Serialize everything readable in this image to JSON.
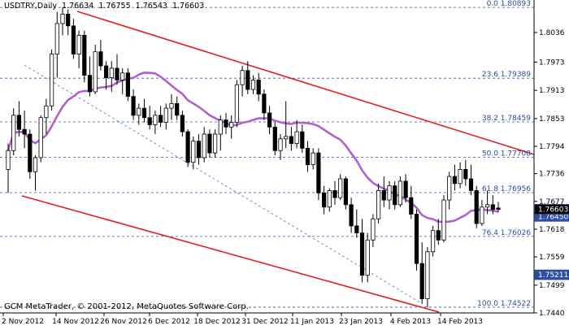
{
  "header": {
    "symbol": "USDTRY,Daily",
    "open": "1.76634",
    "high": "1.76755",
    "low": "1.76543",
    "close": "1.76603"
  },
  "copyright": "GCM MetaTrader, © 2001-2012, MetaQuotes Software Corp.",
  "colors": {
    "background": "#ffffff",
    "candle": "#000000",
    "channel": "#e02020",
    "moving_average": "#b060d0",
    "fib_line": "#3355aa",
    "diag_line": "#5577cc",
    "current_price_label": "#1f3f8f",
    "axis": "#000000"
  },
  "chart_data": {
    "type": "candlestick",
    "symbol": "USDTRY",
    "timeframe": "Daily",
    "ylim": [
      1.744,
      1.8105
    ],
    "xlabels": [
      "2 Nov 2012",
      "14 Nov 2012",
      "26 Nov 2012",
      "6 Dec 2012",
      "18 Dec 2012",
      "31 Dec 2012",
      "11 Jan 2013",
      "23 Jan 2013",
      "4 Feb 2013",
      "14 Feb 2013"
    ],
    "yticks": [
      "1.8036",
      "1.7973",
      "1.7913",
      "1.7853",
      "1.7794",
      "1.7736",
      "1.7677",
      "1.7618",
      "1.7559",
      "1.7499",
      "1.7440"
    ],
    "current_price": "1.76603",
    "price_marker_2": "1.76450",
    "price_marker_3": "1.75211",
    "fib_levels": [
      {
        "label": "0.0 1.80893",
        "value": 1.80893
      },
      {
        "label": "23.6 1.79389",
        "value": 1.79389
      },
      {
        "label": "38.2 1.78459",
        "value": 1.78459
      },
      {
        "label": "50.0 1.77708",
        "value": 1.77708
      },
      {
        "label": "61.8 1.76956",
        "value": 1.76956
      },
      {
        "label": "76.4 1.76026",
        "value": 1.76026
      },
      {
        "label": "100.0 1.74522",
        "value": 1.74522
      }
    ],
    "candles": [
      {
        "o": 1.7745,
        "h": 1.78,
        "l": 1.7695,
        "c": 1.7785
      },
      {
        "o": 1.7785,
        "h": 1.7875,
        "l": 1.7775,
        "c": 1.786
      },
      {
        "o": 1.786,
        "h": 1.789,
        "l": 1.7815,
        "c": 1.783
      },
      {
        "o": 1.783,
        "h": 1.787,
        "l": 1.779,
        "c": 1.782
      },
      {
        "o": 1.782,
        "h": 1.783,
        "l": 1.7725,
        "c": 1.774
      },
      {
        "o": 1.774,
        "h": 1.7775,
        "l": 1.77,
        "c": 1.777
      },
      {
        "o": 1.777,
        "h": 1.786,
        "l": 1.776,
        "c": 1.7855
      },
      {
        "o": 1.7855,
        "h": 1.7895,
        "l": 1.782,
        "c": 1.788
      },
      {
        "o": 1.788,
        "h": 1.8,
        "l": 1.787,
        "c": 1.799
      },
      {
        "o": 1.799,
        "h": 1.808,
        "l": 1.794,
        "c": 1.8055
      },
      {
        "o": 1.8055,
        "h": 1.8089,
        "l": 1.803,
        "c": 1.8075
      },
      {
        "o": 1.8075,
        "h": 1.8085,
        "l": 1.803,
        "c": 1.805
      },
      {
        "o": 1.805,
        "h": 1.8065,
        "l": 1.798,
        "c": 1.799
      },
      {
        "o": 1.799,
        "h": 1.804,
        "l": 1.796,
        "c": 1.803
      },
      {
        "o": 1.803,
        "h": 1.804,
        "l": 1.793,
        "c": 1.7945
      },
      {
        "o": 1.7945,
        "h": 1.7985,
        "l": 1.79,
        "c": 1.791
      },
      {
        "o": 1.791,
        "h": 1.801,
        "l": 1.7905,
        "c": 1.7995
      },
      {
        "o": 1.7995,
        "h": 1.802,
        "l": 1.7955,
        "c": 1.7965
      },
      {
        "o": 1.7965,
        "h": 1.7975,
        "l": 1.7915,
        "c": 1.794
      },
      {
        "o": 1.794,
        "h": 1.7975,
        "l": 1.791,
        "c": 1.796
      },
      {
        "o": 1.796,
        "h": 1.799,
        "l": 1.7925,
        "c": 1.7935
      },
      {
        "o": 1.7935,
        "h": 1.796,
        "l": 1.7905,
        "c": 1.795
      },
      {
        "o": 1.795,
        "h": 1.796,
        "l": 1.789,
        "c": 1.79
      },
      {
        "o": 1.79,
        "h": 1.7915,
        "l": 1.785,
        "c": 1.786
      },
      {
        "o": 1.786,
        "h": 1.7885,
        "l": 1.784,
        "c": 1.7875
      },
      {
        "o": 1.7875,
        "h": 1.7895,
        "l": 1.7845,
        "c": 1.7855
      },
      {
        "o": 1.7855,
        "h": 1.788,
        "l": 1.783,
        "c": 1.784
      },
      {
        "o": 1.784,
        "h": 1.787,
        "l": 1.782,
        "c": 1.786
      },
      {
        "o": 1.786,
        "h": 1.788,
        "l": 1.7835,
        "c": 1.7845
      },
      {
        "o": 1.7845,
        "h": 1.7885,
        "l": 1.783,
        "c": 1.7875
      },
      {
        "o": 1.7875,
        "h": 1.7905,
        "l": 1.785,
        "c": 1.7885
      },
      {
        "o": 1.7885,
        "h": 1.79,
        "l": 1.785,
        "c": 1.786
      },
      {
        "o": 1.786,
        "h": 1.787,
        "l": 1.7815,
        "c": 1.7825
      },
      {
        "o": 1.7825,
        "h": 1.783,
        "l": 1.775,
        "c": 1.776
      },
      {
        "o": 1.776,
        "h": 1.7815,
        "l": 1.7745,
        "c": 1.7805
      },
      {
        "o": 1.7805,
        "h": 1.782,
        "l": 1.7755,
        "c": 1.777
      },
      {
        "o": 1.777,
        "h": 1.7835,
        "l": 1.776,
        "c": 1.782
      },
      {
        "o": 1.782,
        "h": 1.783,
        "l": 1.777,
        "c": 1.778
      },
      {
        "o": 1.778,
        "h": 1.783,
        "l": 1.777,
        "c": 1.782
      },
      {
        "o": 1.782,
        "h": 1.786,
        "l": 1.7785,
        "c": 1.785
      },
      {
        "o": 1.785,
        "h": 1.7865,
        "l": 1.782,
        "c": 1.7835
      },
      {
        "o": 1.7835,
        "h": 1.786,
        "l": 1.781,
        "c": 1.7845
      },
      {
        "o": 1.7845,
        "h": 1.7935,
        "l": 1.7835,
        "c": 1.7925
      },
      {
        "o": 1.7925,
        "h": 1.7965,
        "l": 1.79,
        "c": 1.7955
      },
      {
        "o": 1.7955,
        "h": 1.7975,
        "l": 1.7905,
        "c": 1.7915
      },
      {
        "o": 1.7915,
        "h": 1.7945,
        "l": 1.7905,
        "c": 1.7935
      },
      {
        "o": 1.7935,
        "h": 1.795,
        "l": 1.789,
        "c": 1.7905
      },
      {
        "o": 1.7905,
        "h": 1.7915,
        "l": 1.785,
        "c": 1.7865
      },
      {
        "o": 1.7865,
        "h": 1.788,
        "l": 1.782,
        "c": 1.7835
      },
      {
        "o": 1.7835,
        "h": 1.7845,
        "l": 1.7775,
        "c": 1.7785
      },
      {
        "o": 1.7785,
        "h": 1.782,
        "l": 1.7765,
        "c": 1.781
      },
      {
        "o": 1.781,
        "h": 1.789,
        "l": 1.779,
        "c": 1.7815
      },
      {
        "o": 1.7815,
        "h": 1.7835,
        "l": 1.7785,
        "c": 1.78
      },
      {
        "o": 1.78,
        "h": 1.785,
        "l": 1.779,
        "c": 1.7825
      },
      {
        "o": 1.7825,
        "h": 1.784,
        "l": 1.778,
        "c": 1.779
      },
      {
        "o": 1.779,
        "h": 1.7805,
        "l": 1.774,
        "c": 1.7755
      },
      {
        "o": 1.7755,
        "h": 1.779,
        "l": 1.7745,
        "c": 1.778
      },
      {
        "o": 1.778,
        "h": 1.779,
        "l": 1.768,
        "c": 1.7695
      },
      {
        "o": 1.7695,
        "h": 1.771,
        "l": 1.765,
        "c": 1.7665
      },
      {
        "o": 1.7665,
        "h": 1.7705,
        "l": 1.7655,
        "c": 1.77
      },
      {
        "o": 1.77,
        "h": 1.772,
        "l": 1.767,
        "c": 1.7685
      },
      {
        "o": 1.7685,
        "h": 1.7735,
        "l": 1.768,
        "c": 1.7725
      },
      {
        "o": 1.7725,
        "h": 1.773,
        "l": 1.766,
        "c": 1.767
      },
      {
        "o": 1.767,
        "h": 1.7685,
        "l": 1.761,
        "c": 1.7625
      },
      {
        "o": 1.7625,
        "h": 1.766,
        "l": 1.76,
        "c": 1.761
      },
      {
        "o": 1.761,
        "h": 1.764,
        "l": 1.7505,
        "c": 1.752
      },
      {
        "o": 1.752,
        "h": 1.761,
        "l": 1.7505,
        "c": 1.7595
      },
      {
        "o": 1.7595,
        "h": 1.765,
        "l": 1.758,
        "c": 1.764
      },
      {
        "o": 1.764,
        "h": 1.7715,
        "l": 1.763,
        "c": 1.77
      },
      {
        "o": 1.77,
        "h": 1.773,
        "l": 1.7665,
        "c": 1.768
      },
      {
        "o": 1.768,
        "h": 1.772,
        "l": 1.766,
        "c": 1.771
      },
      {
        "o": 1.771,
        "h": 1.772,
        "l": 1.766,
        "c": 1.767
      },
      {
        "o": 1.767,
        "h": 1.773,
        "l": 1.7665,
        "c": 1.772
      },
      {
        "o": 1.772,
        "h": 1.7735,
        "l": 1.7675,
        "c": 1.7685
      },
      {
        "o": 1.7685,
        "h": 1.771,
        "l": 1.764,
        "c": 1.765
      },
      {
        "o": 1.765,
        "h": 1.766,
        "l": 1.753,
        "c": 1.7545
      },
      {
        "o": 1.7545,
        "h": 1.759,
        "l": 1.746,
        "c": 1.747
      },
      {
        "o": 1.747,
        "h": 1.758,
        "l": 1.7452,
        "c": 1.757
      },
      {
        "o": 1.757,
        "h": 1.7625,
        "l": 1.756,
        "c": 1.7615
      },
      {
        "o": 1.7615,
        "h": 1.764,
        "l": 1.7585,
        "c": 1.7595
      },
      {
        "o": 1.7595,
        "h": 1.769,
        "l": 1.759,
        "c": 1.768
      },
      {
        "o": 1.768,
        "h": 1.774,
        "l": 1.766,
        "c": 1.773
      },
      {
        "o": 1.773,
        "h": 1.7755,
        "l": 1.77,
        "c": 1.7715
      },
      {
        "o": 1.7715,
        "h": 1.776,
        "l": 1.7705,
        "c": 1.7745
      },
      {
        "o": 1.7745,
        "h": 1.7765,
        "l": 1.771,
        "c": 1.7725
      },
      {
        "o": 1.7725,
        "h": 1.7755,
        "l": 1.769,
        "c": 1.77
      },
      {
        "o": 1.77,
        "h": 1.771,
        "l": 1.762,
        "c": 1.763
      },
      {
        "o": 1.763,
        "h": 1.768,
        "l": 1.7625,
        "c": 1.7665
      },
      {
        "o": 1.7665,
        "h": 1.77,
        "l": 1.765,
        "c": 1.767
      },
      {
        "o": 1.767,
        "h": 1.769,
        "l": 1.765,
        "c": 1.766
      },
      {
        "o": 1.7663,
        "h": 1.7676,
        "l": 1.7654,
        "c": 1.766
      }
    ]
  }
}
